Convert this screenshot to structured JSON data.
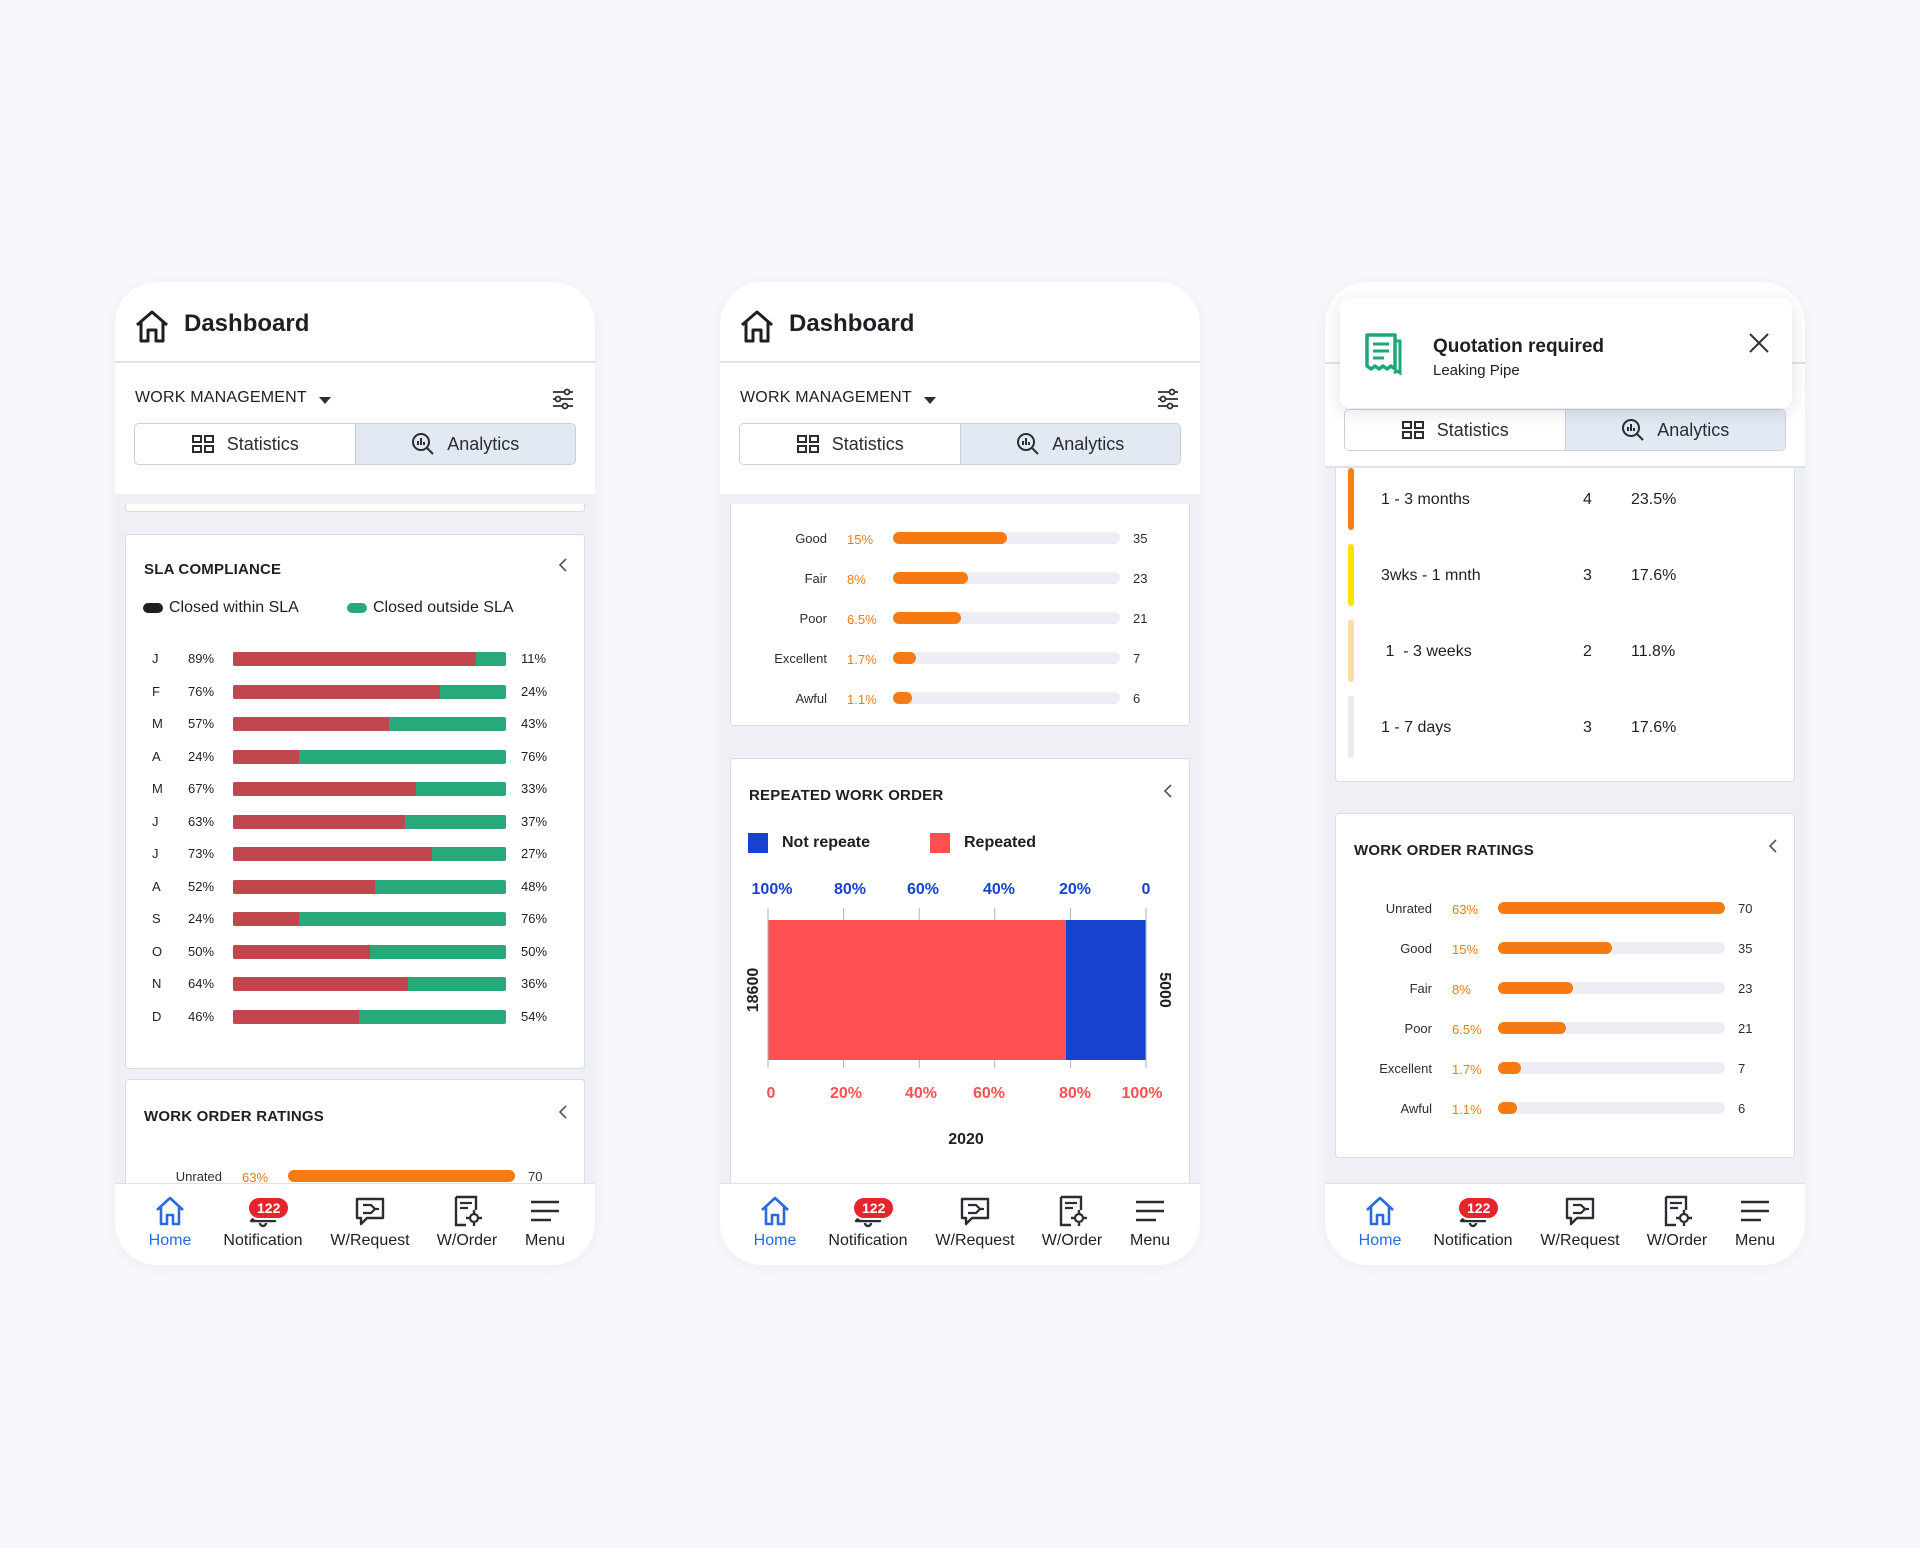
{
  "app": {
    "title": "Dashboard",
    "section": "WORK MANAGEMENT",
    "tabs": {
      "statistics": "Statistics",
      "analytics": "Analytics"
    }
  },
  "nav": {
    "home": "Home",
    "notification": "Notification",
    "notification_badge": "122",
    "wrequest": "W/Request",
    "worder": "W/Order",
    "menu": "Menu"
  },
  "sla": {
    "title": "SLA COMPLIANCE",
    "legend_within": "Closed within SLA",
    "legend_outside": "Closed outside SLA",
    "colors": {
      "within": "#c2464d",
      "outside": "#28a979"
    },
    "rows": [
      {
        "month": "J",
        "within": 89,
        "within_label": "89%",
        "outside_label": "11%"
      },
      {
        "month": "F",
        "within": 76,
        "within_label": "76%",
        "outside_label": "24%"
      },
      {
        "month": "M",
        "within": 57,
        "within_label": "57%",
        "outside_label": "43%"
      },
      {
        "month": "A",
        "within": 24,
        "within_label": "24%",
        "outside_label": "76%"
      },
      {
        "month": "M",
        "within": 67,
        "within_label": "67%",
        "outside_label": "33%"
      },
      {
        "month": "J",
        "within": 63,
        "within_label": "63%",
        "outside_label": "37%"
      },
      {
        "month": "J",
        "within": 73,
        "within_label": "73%",
        "outside_label": "27%"
      },
      {
        "month": "A",
        "within": 52,
        "within_label": "52%",
        "outside_label": "48%"
      },
      {
        "month": "S",
        "within": 24,
        "within_label": "24%",
        "outside_label": "76%"
      },
      {
        "month": "O",
        "within": 50,
        "within_label": "50%",
        "outside_label": "50%"
      },
      {
        "month": "N",
        "within": 64,
        "within_label": "64%",
        "outside_label": "36%"
      },
      {
        "month": "D",
        "within": 46,
        "within_label": "46%",
        "outside_label": "54%"
      }
    ]
  },
  "ratings": {
    "title": "WORK ORDER RATINGS",
    "max": 70,
    "rows": [
      {
        "label": "Unrated",
        "pct": "63%",
        "value": 70
      },
      {
        "label": "Good",
        "pct": "15%",
        "value": 35
      },
      {
        "label": "Fair",
        "pct": "8%",
        "value": 23
      },
      {
        "label": "Poor",
        "pct": "6.5%",
        "value": 21
      },
      {
        "label": "Excellent",
        "pct": "1.7%",
        "value": 7
      },
      {
        "label": "Awful",
        "pct": "1.1%",
        "value": 6
      }
    ]
  },
  "repeated": {
    "title": "REPEATED WORK ORDER",
    "legend_not_repeated": "Not repeate",
    "legend_repeated": "Repeated",
    "colors": {
      "not_repeated": "#1742d0",
      "repeated": "#fe5050"
    },
    "top_ticks": [
      "100%",
      "80%",
      "60%",
      "40%",
      "20%",
      "0"
    ],
    "bottom_ticks": [
      "0",
      "20%",
      "40%",
      "60%",
      "80%",
      "100%"
    ],
    "left_value": "18600",
    "right_value": "5000",
    "year": "2020",
    "chart_data": {
      "type": "bar",
      "categories": [
        "2020"
      ],
      "series": [
        {
          "name": "Repeated",
          "values": [
            18600
          ]
        },
        {
          "name": "Not repeate",
          "values": [
            5000
          ]
        }
      ],
      "stacked": true,
      "orientation": "horizontal"
    }
  },
  "toast": {
    "title": "Quotation required",
    "subtitle": "Leaking Pipe"
  },
  "durations": {
    "rows": [
      {
        "label": "1 - 3 months",
        "count": "4",
        "pct": "23.5%",
        "color": "#f47f17"
      },
      {
        "label": "3wks - 1 mnth",
        "count": "3",
        "pct": "17.6%",
        "color": "#ffe100"
      },
      {
        "label": " 1  - 3 weeks",
        "count": "2",
        "pct": "11.8%",
        "color": "#ffdca0"
      },
      {
        "label": "1 - 7 days",
        "count": "3",
        "pct": "17.6%",
        "color": "#e8eaee"
      }
    ]
  }
}
